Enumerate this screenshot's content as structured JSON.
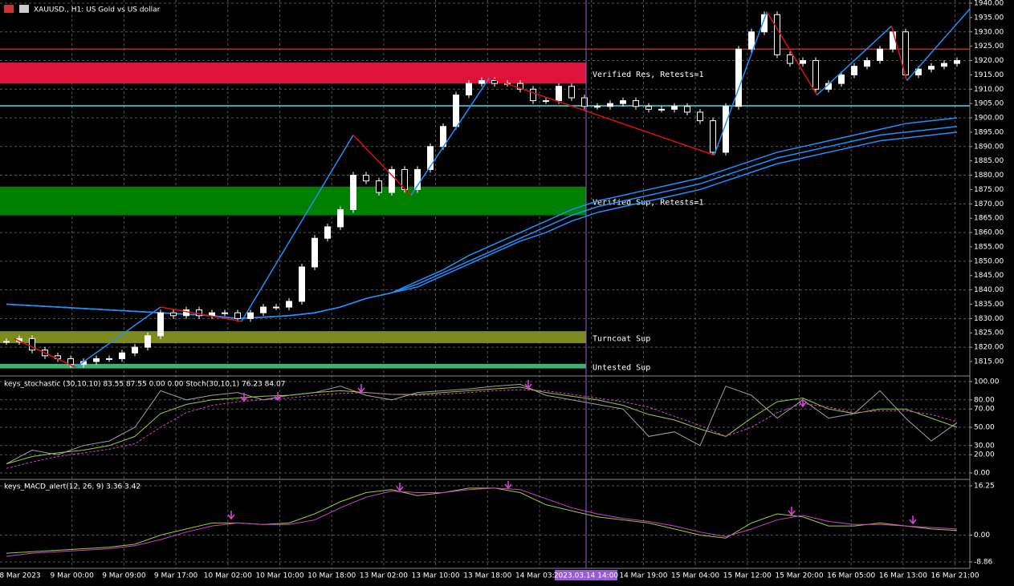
{
  "header": {
    "title": "XAUUSD., H1: US Gold vs US dollar"
  },
  "chart_data": [
    {
      "type": "candlestick",
      "values": [
        1822,
        1823,
        1819,
        1817,
        1816,
        1814,
        1815,
        1816,
        1816,
        1818,
        1820,
        1824,
        1832,
        1831,
        1833,
        1831,
        1832,
        1832,
        1830,
        1832,
        1834,
        1834,
        1836,
        1848,
        1858,
        1862,
        1868,
        1880,
        1878,
        1874,
        1882,
        1875,
        1882,
        1890,
        1897,
        1908,
        1912,
        1913,
        1912,
        1912,
        1910,
        1906,
        1906,
        1911,
        1907,
        1904,
        1904,
        1905,
        1906,
        1904,
        1903,
        1903,
        1904,
        1902,
        1899,
        1888,
        1904,
        1924,
        1930,
        1936,
        1922,
        1919,
        1920,
        1910,
        1912,
        1915,
        1918,
        1920,
        1924,
        1930,
        1915,
        1917,
        1918,
        1919,
        1920
      ],
      "ylim": [
        1815,
        1940
      ],
      "yticks": [
        {
          "value": 1815,
          "label": "1815.00"
        },
        {
          "value": 1820,
          "label": "1820.00"
        },
        {
          "value": 1825,
          "label": "1825.00"
        },
        {
          "value": 1830,
          "label": "1830.00"
        },
        {
          "value": 1835,
          "label": "1835.00"
        },
        {
          "value": 1840,
          "label": "1840.00"
        },
        {
          "value": 1845,
          "label": "1845.00"
        },
        {
          "value": 1850,
          "label": "1850.00"
        },
        {
          "value": 1855,
          "label": "1855.00"
        },
        {
          "value": 1860,
          "label": "1860.00"
        },
        {
          "value": 1865,
          "label": "1865.00"
        },
        {
          "value": 1870,
          "label": "1870.00"
        },
        {
          "value": 1875,
          "label": "1875.00"
        },
        {
          "value": 1880,
          "label": "1880.00"
        },
        {
          "value": 1885,
          "label": "1885.00"
        },
        {
          "value": 1890,
          "label": "1890.00"
        },
        {
          "value": 1895,
          "label": "1895.00"
        },
        {
          "value": 1900,
          "label": "1900.00"
        },
        {
          "value": 1905,
          "label": "1905.00"
        },
        {
          "value": 1910,
          "label": "1910.00"
        },
        {
          "value": 1915,
          "label": "1915.00"
        },
        {
          "value": 1920,
          "label": "1920.00"
        },
        {
          "value": 1925,
          "label": "1925.00"
        },
        {
          "value": 1930,
          "label": "1930.00"
        },
        {
          "value": 1935,
          "label": "1935.00"
        },
        {
          "value": 1940,
          "label": "1940.00"
        }
      ],
      "zones": [
        {
          "label": "Verified Res, Retests=1",
          "low": 1912,
          "high": 1919.3,
          "color": "#dc143c"
        },
        {
          "label": "Verified Sup, Retests=1",
          "low": 1866,
          "high": 1876,
          "color": "#008000"
        },
        {
          "label": "Turncoat Sup",
          "low": 1821.4,
          "high": 1825.6,
          "color": "#7d8a1e"
        },
        {
          "label": "Untested Sup",
          "low": 1812.6,
          "high": 1814.2,
          "color": "#3cb371"
        }
      ],
      "levels": [
        {
          "value": 1904.2,
          "color": "#40e0f0"
        },
        {
          "value": 1924,
          "color": "#b03030"
        }
      ],
      "moving_averages": [
        {
          "color": "#1e90ff",
          "values": [
            1835,
            1834.5,
            1834,
            1833.5,
            1833,
            1832.5,
            1832,
            1831.5,
            1831,
            1830,
            1830.5,
            1831,
            1832,
            1834,
            1837,
            1839,
            1843,
            1847,
            1852,
            1856,
            1860,
            1864,
            1868,
            1871,
            1873,
            1875,
            1877,
            1879,
            1882,
            1885,
            1888,
            1890,
            1892,
            1894,
            1896,
            1898,
            1899,
            1900
          ]
        },
        {
          "color": "#1e90ff",
          "values": [
            1835,
            1834.5,
            1834,
            1833.5,
            1833,
            1832.5,
            1832,
            1831.5,
            1831,
            1830,
            1830.5,
            1831,
            1832,
            1834,
            1837,
            1839,
            1842,
            1846,
            1850,
            1854,
            1858,
            1862,
            1866,
            1869,
            1871,
            1873,
            1875,
            1877,
            1880,
            1883,
            1886,
            1888,
            1890,
            1892,
            1894,
            1895,
            1896,
            1897
          ]
        },
        {
          "color": "#1e90ff",
          "values": [
            1835,
            1834.5,
            1834,
            1833.5,
            1833,
            1832.5,
            1832,
            1831.5,
            1831,
            1830,
            1830.5,
            1831,
            1832,
            1834,
            1837,
            1839,
            1841,
            1845,
            1849,
            1853,
            1857,
            1860,
            1864,
            1867,
            1869,
            1871,
            1873,
            1875,
            1878,
            1881,
            1884,
            1886,
            1888,
            1890,
            1892,
            1893,
            1894,
            1895
          ]
        }
      ],
      "zigzag": {
        "x": [
          0.6,
          5.4,
          12,
          18.3,
          27,
          31.5,
          37.6,
          55.1,
          59.2,
          63.1,
          68.9,
          70.1,
          75
        ],
        "values": [
          1823,
          1813,
          1834,
          1829,
          1894,
          1873,
          1914,
          1887,
          1937,
          1908,
          1932,
          1913,
          1938
        ]
      }
    },
    {
      "type": "line",
      "title": "keys_stochastic (30,10,10) 83.55 87.55 0.00 0.00 Stoch(30,10,1) 76.23 84.07",
      "series": [
        {
          "color": "#a0a0a0",
          "values": [
            10,
            25,
            20,
            30,
            35,
            50,
            90,
            80,
            85,
            88,
            80,
            85,
            88,
            95,
            85,
            80,
            88,
            90,
            92,
            95,
            97,
            85,
            80,
            75,
            70,
            40,
            45,
            30,
            95,
            85,
            60,
            80,
            60,
            65,
            90,
            60,
            35,
            55
          ]
        },
        {
          "color": "#9acd32",
          "values": [
            10,
            18,
            22,
            25,
            30,
            40,
            65,
            75,
            80,
            82,
            84,
            85,
            88,
            90,
            88,
            86,
            86,
            88,
            90,
            92,
            94,
            88,
            84,
            80,
            74,
            64,
            58,
            48,
            40,
            60,
            78,
            82,
            70,
            65,
            70,
            70,
            60,
            50
          ]
        },
        {
          "color": "#d040d0",
          "dashed": true,
          "values": [
            5,
            12,
            18,
            22,
            26,
            32,
            50,
            66,
            74,
            78,
            80,
            82,
            85,
            87,
            88,
            86,
            85,
            86,
            88,
            90,
            91,
            90,
            86,
            82,
            78,
            72,
            62,
            52,
            40,
            50,
            66,
            76,
            72,
            66,
            68,
            68,
            64,
            56
          ]
        }
      ],
      "ylim": [
        0,
        100
      ],
      "yticks": [
        {
          "value": 0,
          "label": "0.00"
        },
        {
          "value": 20,
          "label": "20.00"
        },
        {
          "value": 30,
          "label": "30.00"
        },
        {
          "value": 50,
          "label": "50.00"
        },
        {
          "value": 70,
          "label": "70.00"
        },
        {
          "value": 80,
          "label": "80.00"
        },
        {
          "value": 100,
          "label": "100.00"
        }
      ]
    },
    {
      "type": "line",
      "title": "keys_MACD_alert(12, 26, 9) 3.36 3.42",
      "series": [
        {
          "color": "#9acd32",
          "values": [
            -6,
            -5.5,
            -5,
            -4.5,
            -4,
            -3,
            0,
            2,
            4,
            4,
            3.5,
            4,
            7,
            11,
            14,
            15,
            13,
            14,
            15.5,
            15.5,
            14,
            10,
            8,
            6,
            5,
            4,
            2,
            0,
            -1,
            4,
            7,
            6,
            3,
            3,
            4,
            3,
            2,
            1.5
          ]
        },
        {
          "color": "#d040d0",
          "values": [
            -7,
            -6,
            -5.5,
            -5,
            -4.5,
            -3.5,
            -1.5,
            1,
            3,
            4,
            3.5,
            3.5,
            5,
            9,
            12.5,
            14.5,
            14,
            14,
            15,
            15.5,
            15,
            12,
            9,
            7,
            5.5,
            4.5,
            3,
            1,
            -0.5,
            2,
            5,
            6.5,
            4.5,
            3.5,
            3.5,
            3,
            2.5,
            2
          ]
        }
      ],
      "ylim": [
        -8.86,
        16.25
      ],
      "yticks": [
        -8.86,
        {
          "value": 0,
          "label": "0.00"
        },
        16.25
      ]
    }
  ],
  "time_axis": {
    "labels": [
      "8 Mar 2023",
      "9 Mar 00:00",
      "9 Mar 09:00",
      "9 Mar 17:00",
      "10 Mar 02:00",
      "10 Mar 10:00",
      "10 Mar 18:00",
      "13 Mar 02:00",
      "13 Mar 10:00",
      "13 Mar 18:00",
      "14 Mar 03:00",
      "",
      "14 Mar 19:00",
      "15 Mar 04:00",
      "15 Mar 12:00",
      "15 Mar 20:00",
      "16 Mar 05:00",
      "16 Mar 13:00",
      "16 Mar 21:00"
    ],
    "cursor": "2023.03.14 14:00"
  }
}
